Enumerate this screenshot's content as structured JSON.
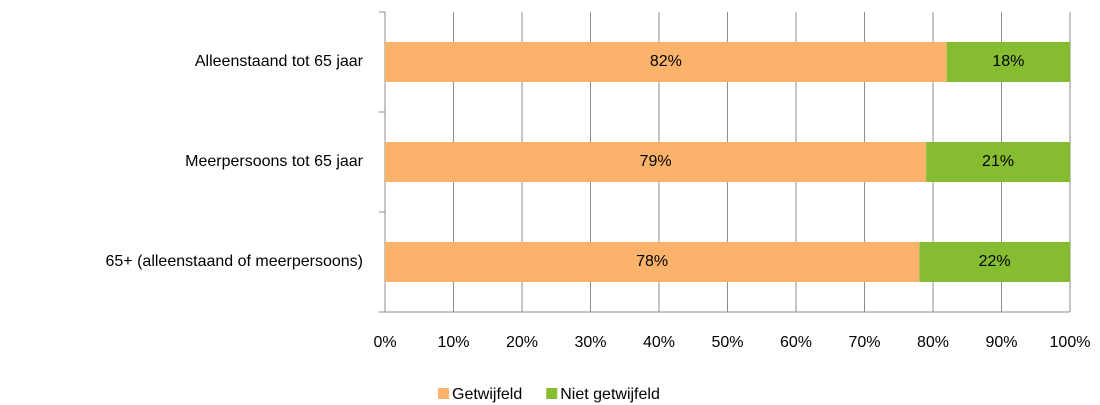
{
  "chart_data": {
    "type": "stacked-barh",
    "categories": [
      "Alleenstaand tot 65 jaar",
      "Meerpersoons tot 65 jaar",
      "65+ (alleenstaand of meerpersoons)"
    ],
    "series": [
      {
        "name": "Getwijfeld",
        "color": "#fbb26a",
        "values": [
          82,
          79,
          78
        ],
        "value_labels": [
          "82%",
          "79%",
          "78%"
        ]
      },
      {
        "name": "Niet getwijfeld",
        "color": "#86bc30",
        "values": [
          18,
          21,
          22
        ],
        "value_labels": [
          "18%",
          "21%",
          "22%"
        ]
      }
    ],
    "xlim": [
      0,
      100
    ],
    "xticks": [
      {
        "value": 0,
        "label": "0%"
      },
      {
        "value": 10,
        "label": "10%"
      },
      {
        "value": 20,
        "label": "20%"
      },
      {
        "value": 30,
        "label": "30%"
      },
      {
        "value": 40,
        "label": "40%"
      },
      {
        "value": 50,
        "label": "50%"
      },
      {
        "value": 60,
        "label": "60%"
      },
      {
        "value": 70,
        "label": "70%"
      },
      {
        "value": 80,
        "label": "80%"
      },
      {
        "value": 90,
        "label": "90%"
      },
      {
        "value": 100,
        "label": "100%"
      }
    ],
    "grid": true,
    "legend": "bottom"
  }
}
